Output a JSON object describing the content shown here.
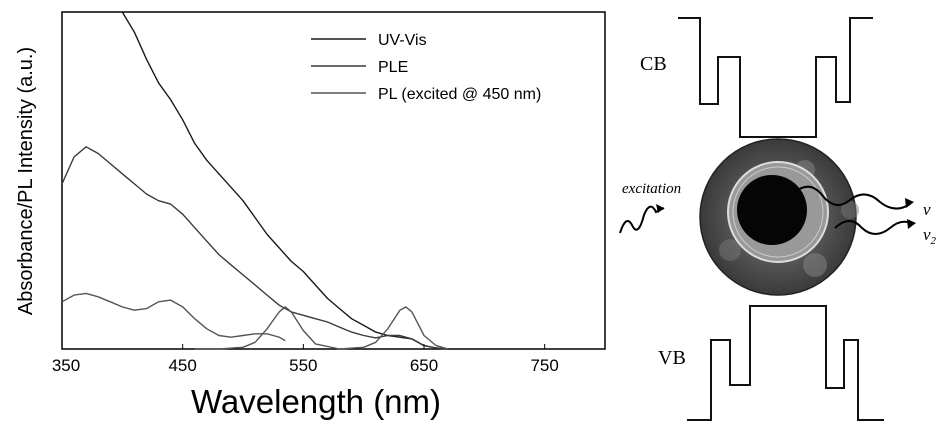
{
  "chart_data": {
    "type": "line",
    "xlabel": "Wavelength (nm)",
    "ylabel": "Absorbance/PL Intensity (a.u.)",
    "xlim": [
      350,
      800
    ],
    "ylim": [
      0,
      1
    ],
    "xticks": [
      350,
      450,
      550,
      650,
      750
    ],
    "legend_position": "top-right",
    "grid": false,
    "series": [
      {
        "name": "UV-Vis",
        "color": "#1a1a1a",
        "x": [
          400,
          410,
          420,
          430,
          440,
          450,
          460,
          470,
          480,
          490,
          500,
          510,
          520,
          530,
          540,
          550,
          560,
          570,
          580,
          590,
          600,
          610,
          620,
          630,
          640,
          650,
          660,
          670
        ],
        "y": [
          1.0,
          0.94,
          0.86,
          0.79,
          0.74,
          0.68,
          0.61,
          0.56,
          0.52,
          0.48,
          0.44,
          0.39,
          0.34,
          0.3,
          0.26,
          0.23,
          0.19,
          0.15,
          0.12,
          0.09,
          0.07,
          0.05,
          0.04,
          0.035,
          0.03,
          0.01,
          0.003,
          0.0
        ]
      },
      {
        "name": "PLE",
        "color": "#3a3a3a",
        "x": [
          350,
          360,
          370,
          380,
          390,
          400,
          410,
          420,
          430,
          440,
          450,
          460,
          470,
          480,
          490,
          500,
          510,
          520,
          530,
          540,
          550,
          560,
          570,
          580,
          590,
          600,
          610,
          620,
          630,
          640,
          650,
          660,
          670
        ],
        "y": [
          0.49,
          0.57,
          0.6,
          0.58,
          0.55,
          0.52,
          0.49,
          0.46,
          0.44,
          0.43,
          0.4,
          0.36,
          0.32,
          0.28,
          0.25,
          0.22,
          0.19,
          0.16,
          0.13,
          0.11,
          0.1,
          0.09,
          0.08,
          0.065,
          0.05,
          0.04,
          0.033,
          0.04,
          0.04,
          0.03,
          0.01,
          0.003,
          0.0
        ]
      },
      {
        "name": "PL (excited @ 450 nm)",
        "color": "#555555",
        "x": [
          350,
          360,
          370,
          380,
          390,
          400,
          410,
          420,
          430,
          440,
          450,
          460,
          470,
          480,
          490,
          500,
          510,
          520,
          525,
          530,
          535
        ],
        "y": [
          0.14,
          0.16,
          0.165,
          0.155,
          0.14,
          0.125,
          0.115,
          0.12,
          0.14,
          0.145,
          0.125,
          0.09,
          0.06,
          0.04,
          0.035,
          0.04,
          0.045,
          0.045,
          0.04,
          0.035,
          0.025
        ]
      },
      {
        "name": "",
        "color": "#555555",
        "x": [
          460,
          480,
          500,
          510,
          520,
          530,
          535,
          540,
          550,
          560,
          580,
          600,
          610,
          620,
          630,
          635,
          640,
          650,
          660,
          670
        ],
        "y": [
          0.0,
          0.0,
          0.005,
          0.02,
          0.06,
          0.11,
          0.125,
          0.11,
          0.055,
          0.015,
          0.0,
          0.005,
          0.02,
          0.06,
          0.115,
          0.125,
          0.11,
          0.04,
          0.01,
          0.0
        ]
      }
    ]
  },
  "diagram": {
    "cb_label": "CB",
    "vb_label": "VB",
    "excitation_label": "excitation",
    "nu1_label": "ν",
    "nu2_label": "ν",
    "nu2_sub": "2"
  }
}
